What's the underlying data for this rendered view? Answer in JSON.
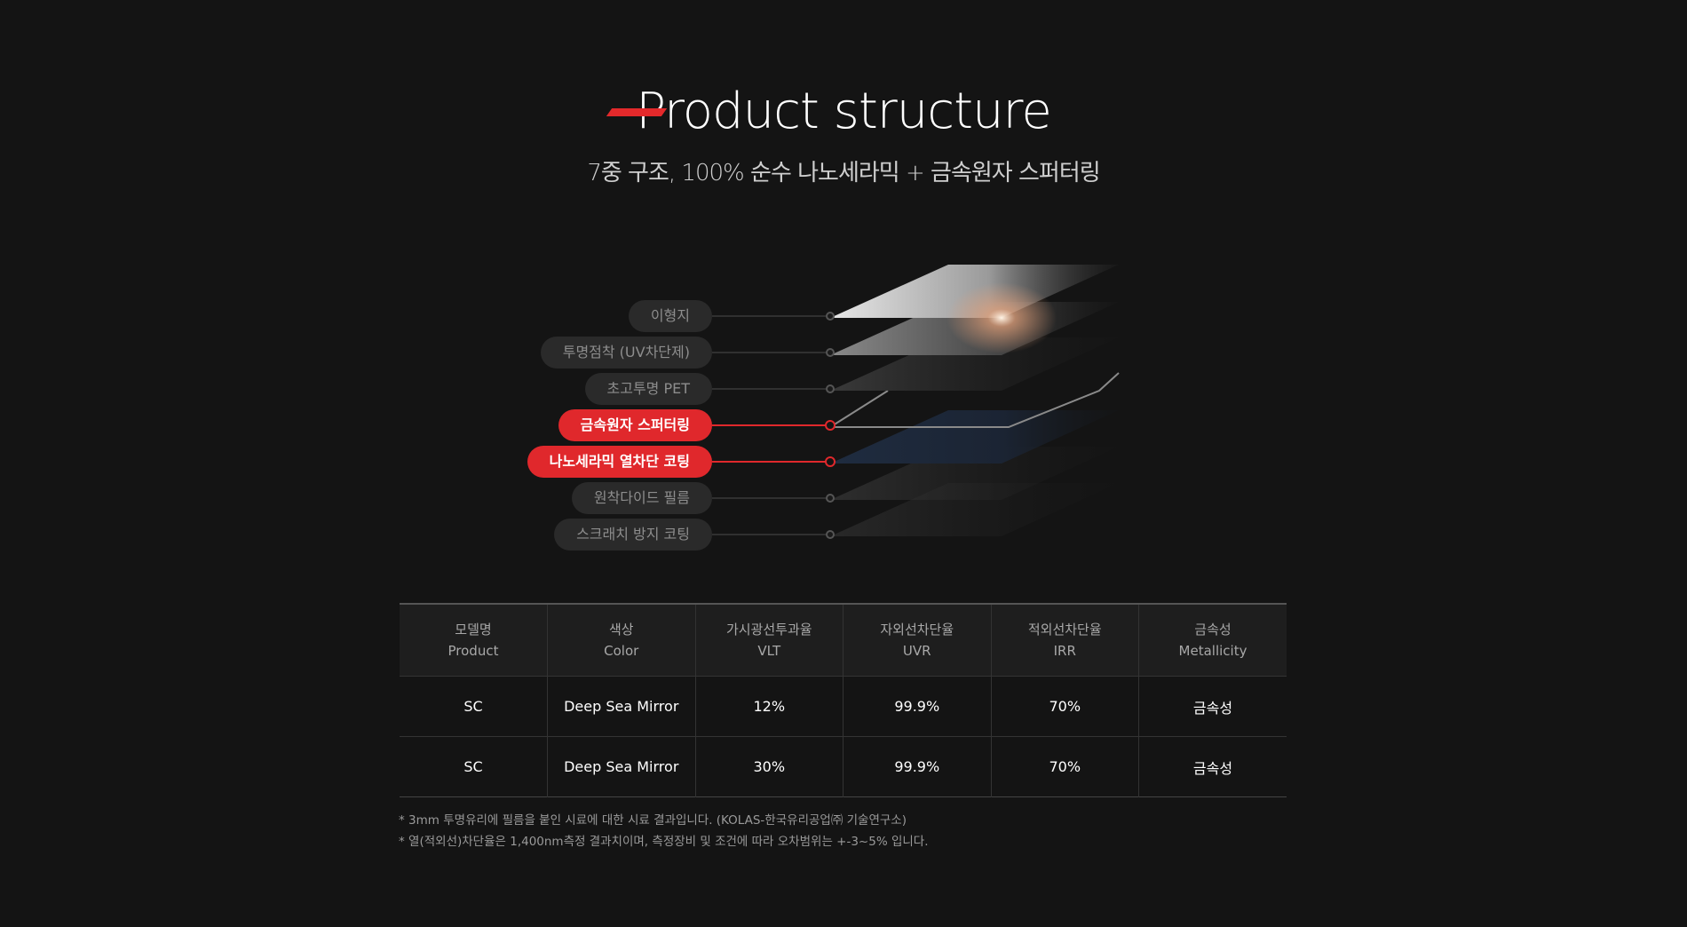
{
  "header": {
    "title": "Product structure",
    "subtitle": "7중 구조, 100% 순수 나노세라믹 + 금속원자 스퍼터링"
  },
  "layers": [
    {
      "label": "이형지",
      "active": false
    },
    {
      "label": "투명점착 (UV차단제)",
      "active": false
    },
    {
      "label": "초고투명 PET",
      "active": false
    },
    {
      "label": "금속원자 스퍼터링",
      "active": true
    },
    {
      "label": "나노세라믹 열차단 코팅",
      "active": true
    },
    {
      "label": "원착다이드 필름",
      "active": false
    },
    {
      "label": "스크래치 방지 코팅",
      "active": false
    }
  ],
  "table": {
    "headers": [
      {
        "ko": "모델명",
        "en": "Product"
      },
      {
        "ko": "색상",
        "en": "Color"
      },
      {
        "ko": "가시광선투과율",
        "en": "VLT"
      },
      {
        "ko": "자외선차단율",
        "en": "UVR"
      },
      {
        "ko": "적외선차단율",
        "en": "IRR"
      },
      {
        "ko": "금속성",
        "en": "Metallicity"
      }
    ],
    "rows": [
      [
        "SC",
        "Deep Sea Mirror",
        "12%",
        "99.9%",
        "70%",
        "금속성"
      ],
      [
        "SC",
        "Deep Sea Mirror",
        "30%",
        "99.9%",
        "70%",
        "금속성"
      ]
    ]
  },
  "notes": [
    "* 3mm 투명유리에 필름을 붙인 시료에 대한 시료 결과입니다. (KOLAS-한국유리공업㈜ 기술연구소)",
    "* 열(적외선)차단율은 1,400nm측정 결과치이며, 측정장비 및 조건에 따라 오차범위는 +-3~5% 입니다."
  ],
  "colors": {
    "background": "#141414",
    "accent": "#e0282c"
  }
}
